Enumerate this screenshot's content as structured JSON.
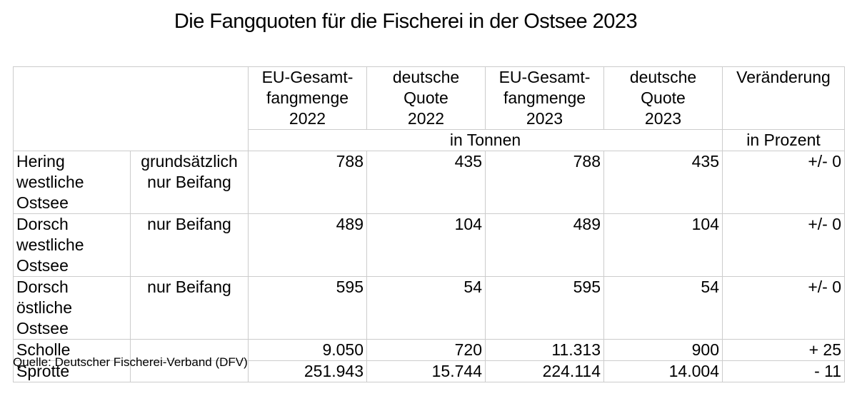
{
  "page": {
    "title": "Die Fangquoten für die Fischerei in der Ostsee 2023",
    "source": "Quelle: Deutscher Fischerei-Verband (DFV)"
  },
  "colors": {
    "background": "#ffffff",
    "text": "#000000",
    "grid_border": "#cccccc"
  },
  "table": {
    "column_headers": [
      "EU-Gesamt-\nfangmenge\n2022",
      "deutsche\nQuote\n2022",
      "EU-Gesamt-\nfangmenge\n2023",
      "deutsche\nQuote\n2023",
      "Veränderung"
    ],
    "unit_row": {
      "tonnes_label": "in Tonnen",
      "percent_label": "in Prozent"
    },
    "rows": [
      {
        "species": "Hering\nwestliche\nOstsee",
        "note": "grundsätzlich\nnur Beifang",
        "values": [
          "788",
          "435",
          "788",
          "435"
        ],
        "change": "+/- 0"
      },
      {
        "species": "Dorsch\nwestliche\nOstsee",
        "note": "nur Beifang",
        "values": [
          "489",
          "104",
          "489",
          "104"
        ],
        "change": "+/- 0"
      },
      {
        "species": "Dorsch östliche\nOstsee",
        "note": "nur Beifang",
        "values": [
          "595",
          "54",
          "595",
          "54"
        ],
        "change": "+/- 0"
      },
      {
        "species": "Scholle",
        "note": "",
        "values": [
          "9.050",
          "720",
          "11.313",
          "900"
        ],
        "change": "+ 25"
      },
      {
        "species": "Sprotte",
        "note": "",
        "values": [
          "251.943",
          "15.744",
          "224.114",
          "14.004"
        ],
        "change": "- 11"
      }
    ]
  },
  "chart_data": {
    "type": "table",
    "title": "Die Fangquoten für die Fischerei in der Ostsee 2023",
    "columns": [
      "",
      "",
      "EU-Gesamtfangmenge 2022",
      "deutsche Quote 2022",
      "EU-Gesamtfangmenge 2023",
      "deutsche Quote 2023",
      "Veränderung"
    ],
    "units": {
      "catch_columns": "in Tonnen",
      "change_column": "in Prozent"
    },
    "rows": [
      [
        "Hering westliche Ostsee",
        "grundsätzlich nur Beifang",
        788,
        435,
        788,
        435,
        "+/- 0"
      ],
      [
        "Dorsch westliche Ostsee",
        "nur Beifang",
        489,
        104,
        489,
        104,
        "+/- 0"
      ],
      [
        "Dorsch östliche Ostsee",
        "nur Beifang",
        595,
        54,
        595,
        54,
        "+/- 0"
      ],
      [
        "Scholle",
        "",
        9050,
        720,
        11313,
        900,
        "+ 25"
      ],
      [
        "Sprotte",
        "",
        251943,
        15744,
        224114,
        14004,
        "- 11"
      ]
    ],
    "source": "Quelle: Deutscher Fischerei-Verband (DFV)"
  }
}
